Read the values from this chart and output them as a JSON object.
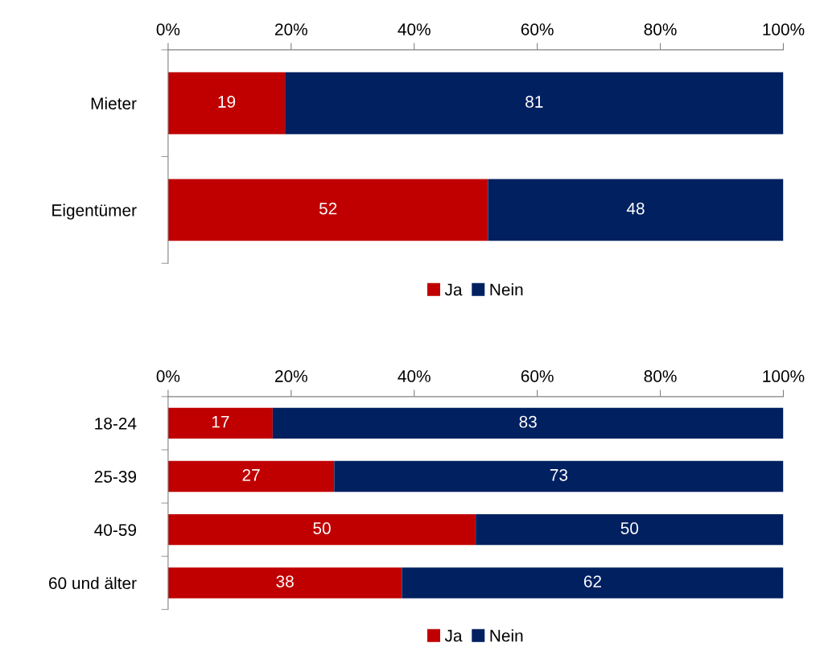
{
  "chart_data": [
    {
      "type": "bar",
      "orientation": "horizontal",
      "stacked": true,
      "categories": [
        "Mieter",
        "Eigentümer"
      ],
      "series": [
        {
          "name": "Ja",
          "color": "#c00000",
          "values": [
            19,
            52
          ]
        },
        {
          "name": "Nein",
          "color": "#002060",
          "values": [
            81,
            48
          ]
        }
      ],
      "xlim": [
        0,
        100
      ],
      "xticks": [
        {
          "value": 0,
          "label": "0%"
        },
        {
          "value": 20,
          "label": "20%"
        },
        {
          "value": 40,
          "label": "40%"
        },
        {
          "value": 60,
          "label": "60%"
        },
        {
          "value": 80,
          "label": "80%"
        },
        {
          "value": 100,
          "label": "100%"
        }
      ],
      "data_labels": true,
      "legend": "bottom",
      "grid": false
    },
    {
      "type": "bar",
      "orientation": "horizontal",
      "stacked": true,
      "categories": [
        "18-24",
        "25-39",
        "40-59",
        "60 und älter"
      ],
      "series": [
        {
          "name": "Ja",
          "color": "#c00000",
          "values": [
            17,
            27,
            50,
            38
          ]
        },
        {
          "name": "Nein",
          "color": "#002060",
          "values": [
            83,
            73,
            50,
            62
          ]
        }
      ],
      "xlim": [
        0,
        100
      ],
      "xticks": [
        {
          "value": 0,
          "label": "0%"
        },
        {
          "value": 20,
          "label": "20%"
        },
        {
          "value": 40,
          "label": "40%"
        },
        {
          "value": 60,
          "label": "60%"
        },
        {
          "value": 80,
          "label": "80%"
        },
        {
          "value": 100,
          "label": "100%"
        }
      ],
      "data_labels": true,
      "legend": "bottom",
      "grid": false
    }
  ]
}
